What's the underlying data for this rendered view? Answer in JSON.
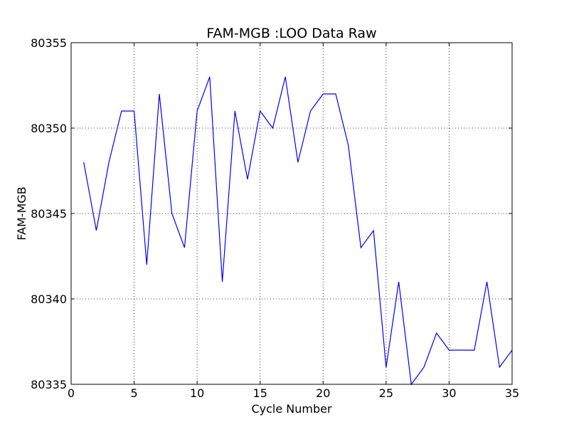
{
  "chart_data": {
    "type": "line",
    "title": "FAM-MGB :LOO Data Raw",
    "xlabel": "Cycle Number",
    "ylabel": "FAM-MGB",
    "xlim": [
      0,
      35
    ],
    "ylim": [
      80335,
      80355
    ],
    "xticks": [
      0,
      5,
      10,
      15,
      20,
      25,
      30,
      35
    ],
    "yticks": [
      80335,
      80340,
      80345,
      80350,
      80355
    ],
    "grid": true,
    "legend": "none",
    "series": [
      {
        "color": "#0000ff",
        "x": [
          1,
          2,
          3,
          4,
          5,
          6,
          7,
          8,
          9,
          10,
          11,
          12,
          13,
          14,
          15,
          16,
          17,
          18,
          19,
          20,
          21,
          22,
          23,
          24,
          25,
          26,
          27,
          28,
          29,
          30,
          31,
          32,
          33,
          34,
          35
        ],
        "y": [
          80348,
          80344,
          80348,
          80351,
          80351,
          80342,
          80352,
          80345,
          80343,
          80351,
          80353,
          80341,
          80351,
          80347,
          80351,
          80350,
          80353,
          80348,
          80351,
          80352,
          80352,
          80349,
          80343,
          80344,
          80336,
          80341,
          80335,
          80336,
          80338,
          80337,
          80337,
          80337,
          80341,
          80336,
          80337
        ]
      }
    ]
  }
}
